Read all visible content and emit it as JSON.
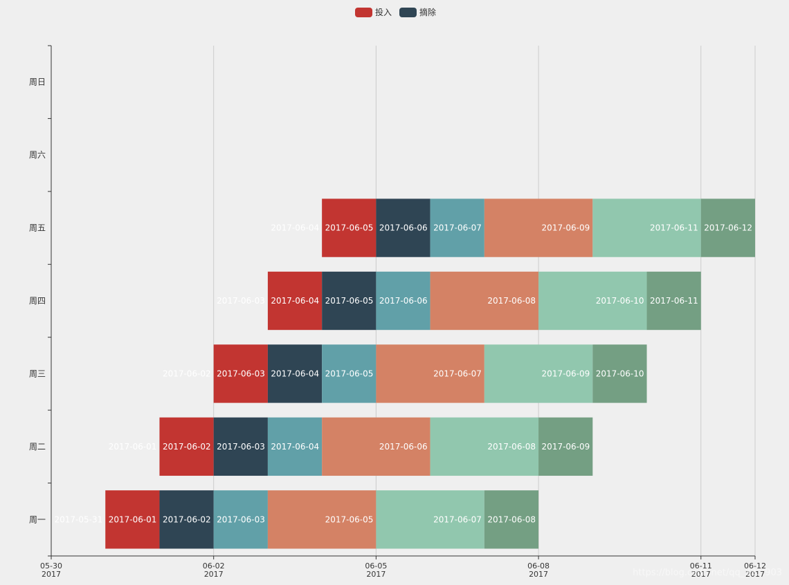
{
  "chart_data": {
    "type": "bar",
    "orientation": "horizontal",
    "stacked": true,
    "categories": [
      "周一",
      "周二",
      "周三",
      "周四",
      "周五",
      "周六",
      "周日"
    ],
    "xaxis": {
      "type": "time",
      "min": "2017-05-30",
      "max": "2017-06-12",
      "ticks": [
        {
          "date": "2017-05-30",
          "line1": "05-30",
          "line2": "2017"
        },
        {
          "date": "2017-06-02",
          "line1": "06-02",
          "line2": "2017"
        },
        {
          "date": "2017-06-05",
          "line1": "06-05",
          "line2": "2017"
        },
        {
          "date": "2017-06-08",
          "line1": "06-08",
          "line2": "2017"
        },
        {
          "date": "2017-06-11",
          "line1": "06-11",
          "line2": "2017"
        },
        {
          "date": "2017-06-12",
          "line1": "06-12",
          "line2": "2017"
        }
      ],
      "grid": true
    },
    "legend": {
      "position": "top-center",
      "items": [
        {
          "name": "投入",
          "color": "#c23531"
        },
        {
          "name": "摘除",
          "color": "#2f4554"
        }
      ]
    },
    "series": [
      {
        "color": null,
        "values": [
          "2017-05-31",
          "2017-06-01",
          "2017-06-02",
          "2017-06-03",
          "2017-06-04",
          null,
          null
        ]
      },
      {
        "name": "投入",
        "color": "#c23531",
        "values": [
          "2017-06-01",
          "2017-06-02",
          "2017-06-03",
          "2017-06-04",
          "2017-06-05",
          null,
          null
        ]
      },
      {
        "name": "摘除",
        "color": "#2f4554",
        "values": [
          "2017-06-02",
          "2017-06-03",
          "2017-06-04",
          "2017-06-05",
          "2017-06-06",
          null,
          null
        ]
      },
      {
        "color": "#61a0a8",
        "values": [
          "2017-06-03",
          "2017-06-04",
          "2017-06-05",
          "2017-06-06",
          "2017-06-07",
          null,
          null
        ]
      },
      {
        "color": "#d48265",
        "values": [
          "2017-06-05",
          "2017-06-06",
          "2017-06-07",
          "2017-06-08",
          "2017-06-09",
          null,
          null
        ]
      },
      {
        "color": "#91c7ae",
        "values": [
          "2017-06-07",
          "2017-06-08",
          "2017-06-09",
          "2017-06-10",
          "2017-06-11",
          null,
          null
        ]
      },
      {
        "color": "#749f83",
        "values": [
          "2017-06-08",
          "2017-06-09",
          "2017-06-10",
          "2017-06-11",
          "2017-06-12",
          null,
          null
        ]
      }
    ]
  },
  "watermark": "https://blog.csdn.net/qq_33...903"
}
